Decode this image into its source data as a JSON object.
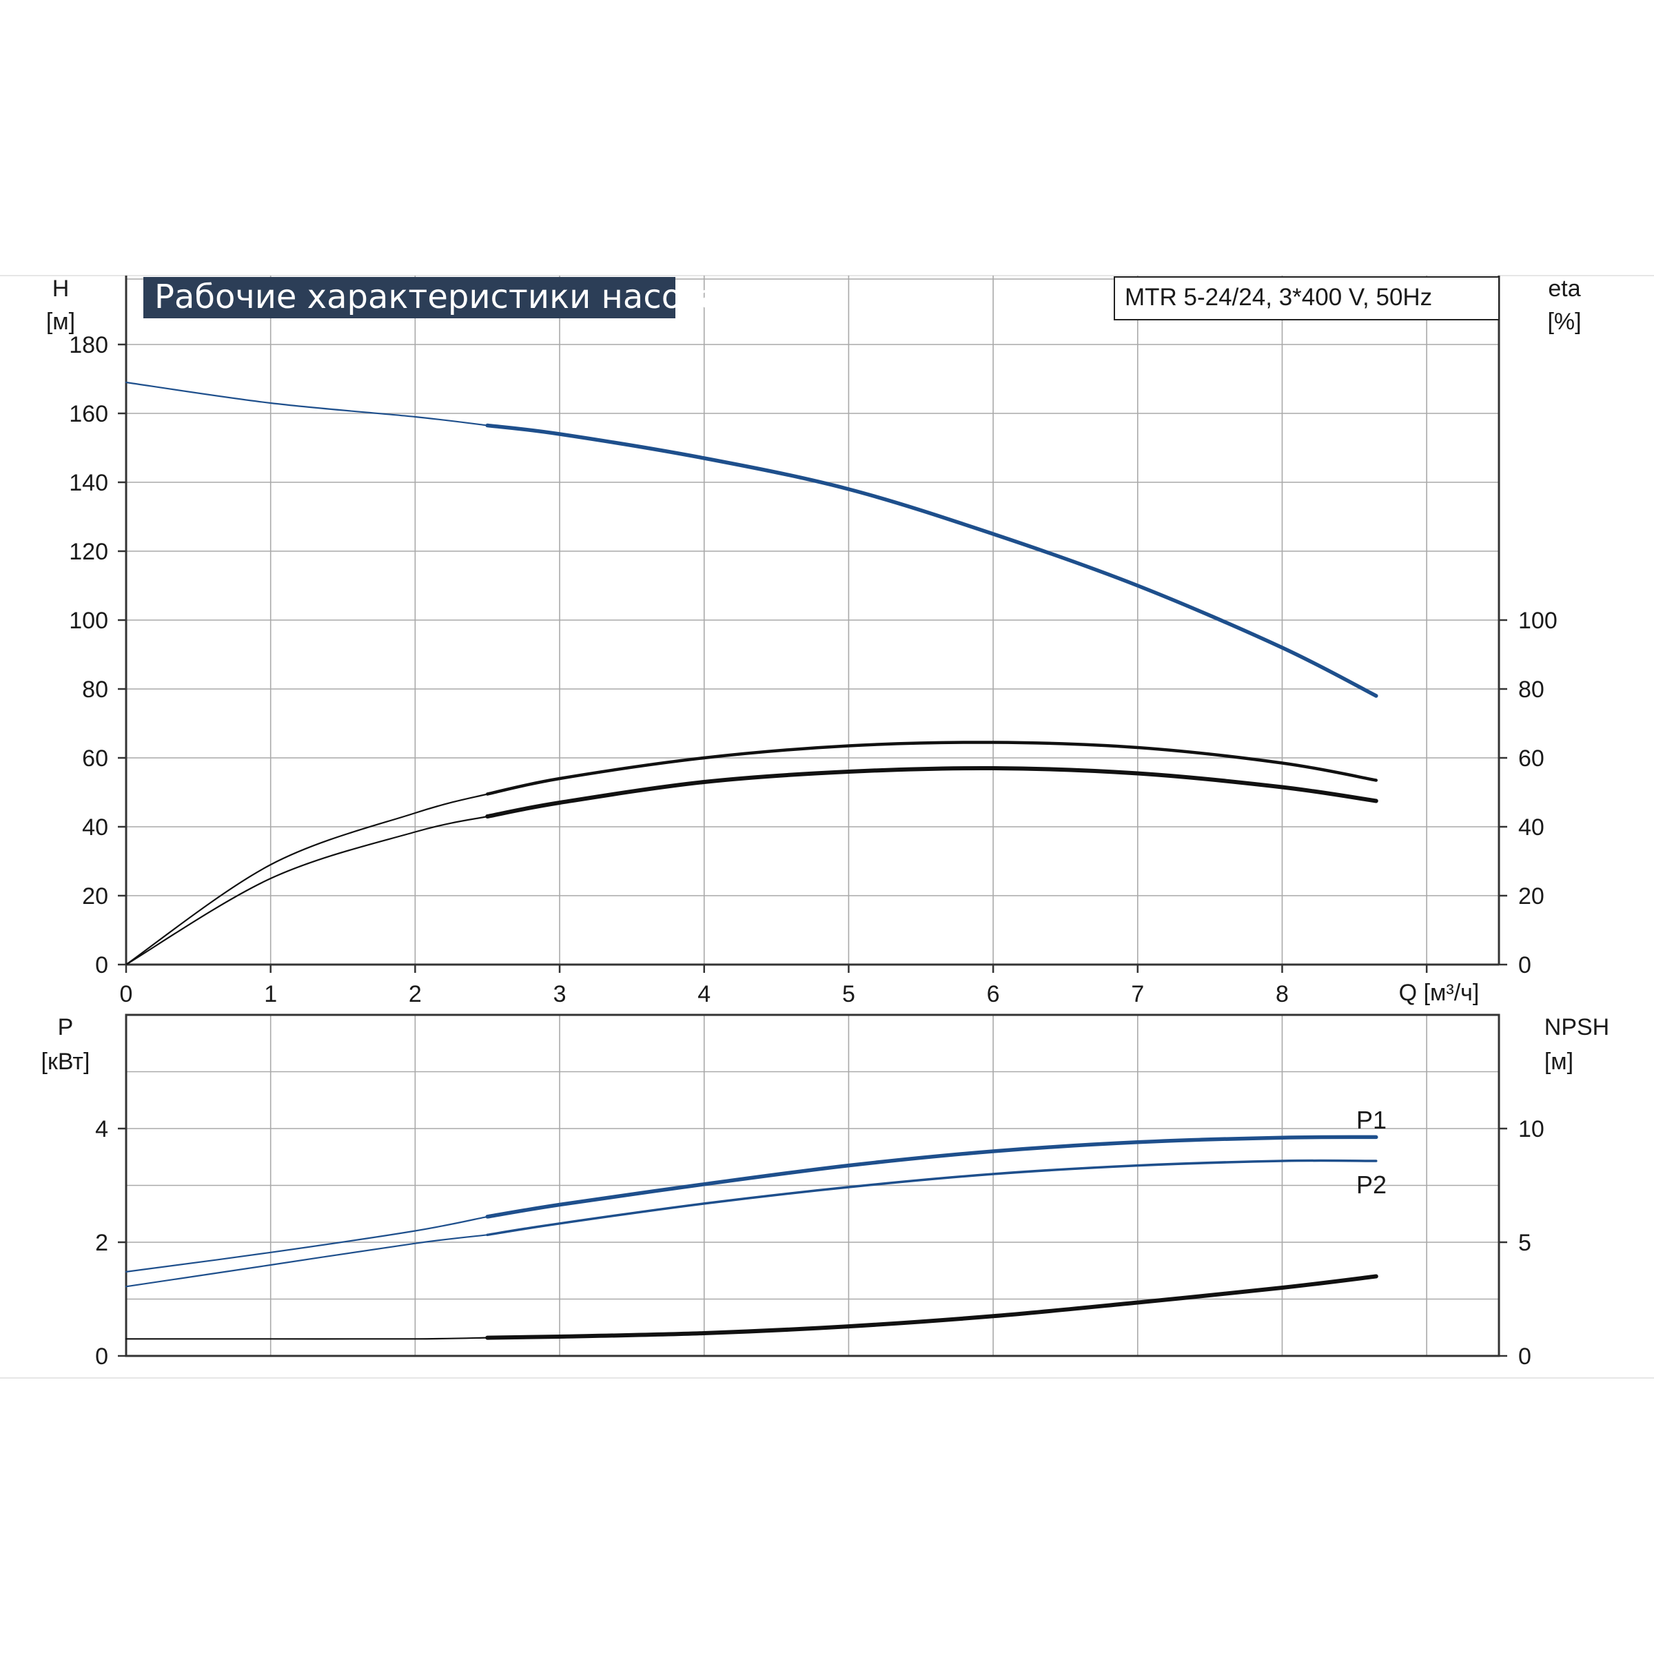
{
  "title": "Рабочие характеристики насоса",
  "model": "MTR 5-24/24, 3*400 V, 50Hz",
  "colors": {
    "accent": "#1e4f8c",
    "title_bg": "#2c3e57",
    "grid": "#a9a9a9",
    "axis": "#333333"
  },
  "chart_data": [
    {
      "type": "line",
      "panel": "head-efficiency",
      "xlabel": "Q [м³/ч]",
      "ylabel": "H",
      "ylabel_unit": "[м]",
      "y2label": "eta",
      "y2label_unit": "[%]",
      "xlim": [
        0,
        9.5
      ],
      "ylim": [
        0,
        200
      ],
      "y2lim": [
        0,
        200
      ],
      "x_ticks": [
        "0",
        "1",
        "2",
        "3",
        "4",
        "5",
        "6",
        "7",
        "8"
      ],
      "y_ticks": [
        "0",
        "20",
        "40",
        "60",
        "80",
        "100",
        "120",
        "140",
        "160",
        "180"
      ],
      "y2_ticks": [
        "0",
        "20",
        "40",
        "60",
        "80",
        "100"
      ],
      "grid": true,
      "series": [
        {
          "key": "H",
          "axis": "left",
          "color": "#1e4f8c",
          "x": [
            0,
            1,
            2,
            2.5,
            3,
            4,
            5,
            6,
            7,
            8,
            8.65
          ],
          "y": [
            169,
            163,
            159,
            156.5,
            154,
            147,
            138,
            125,
            110,
            92,
            78
          ]
        },
        {
          "key": "eta_outer",
          "axis": "right",
          "color": "#111111",
          "x": [
            0,
            1,
            2,
            2.5,
            3,
            4,
            5,
            6,
            7,
            8,
            8.65
          ],
          "y": [
            0,
            29,
            44,
            49.5,
            54,
            60,
            63.5,
            64.5,
            63,
            58.5,
            53.5
          ]
        },
        {
          "key": "eta_inner",
          "axis": "right",
          "color": "#111111",
          "x": [
            0,
            1,
            2,
            2.5,
            3,
            4,
            5,
            6,
            7,
            8,
            8.65
          ],
          "y": [
            0,
            25,
            38.5,
            43,
            47,
            53,
            56,
            57,
            55.5,
            51.5,
            47.5
          ]
        }
      ]
    },
    {
      "type": "line",
      "panel": "power-npsh",
      "ylabel": "P",
      "ylabel_unit": "[кВт]",
      "y2label": "NPSH",
      "y2label_unit": "[м]",
      "xlim": [
        0,
        9.5
      ],
      "ylim": [
        0,
        6
      ],
      "y2lim": [
        0,
        15
      ],
      "y_ticks": [
        "0",
        "2",
        "4"
      ],
      "y2_ticks": [
        "0",
        "5",
        "10"
      ],
      "grid": true,
      "series": [
        {
          "name": "P1",
          "axis": "left",
          "color": "#1e4f8c",
          "x": [
            0,
            1,
            2,
            2.5,
            3,
            4,
            5,
            6,
            7,
            8,
            8.65
          ],
          "y": [
            1.48,
            1.82,
            2.2,
            2.45,
            2.66,
            3.02,
            3.35,
            3.6,
            3.76,
            3.84,
            3.85
          ]
        },
        {
          "name": "P2",
          "axis": "left",
          "color": "#1e4f8c",
          "x": [
            0,
            1,
            2,
            2.5,
            3,
            4,
            5,
            6,
            7,
            8,
            8.65
          ],
          "y": [
            1.22,
            1.6,
            1.98,
            2.13,
            2.33,
            2.68,
            2.97,
            3.2,
            3.35,
            3.43,
            3.43
          ]
        },
        {
          "key": "NPSH",
          "axis": "right",
          "color": "#111111",
          "x": [
            0,
            1,
            2,
            2.5,
            3,
            4,
            5,
            6,
            7,
            8,
            8.65
          ],
          "y": [
            0.75,
            0.75,
            0.75,
            0.8,
            0.85,
            1.0,
            1.3,
            1.75,
            2.35,
            3.0,
            3.5
          ]
        }
      ]
    }
  ]
}
